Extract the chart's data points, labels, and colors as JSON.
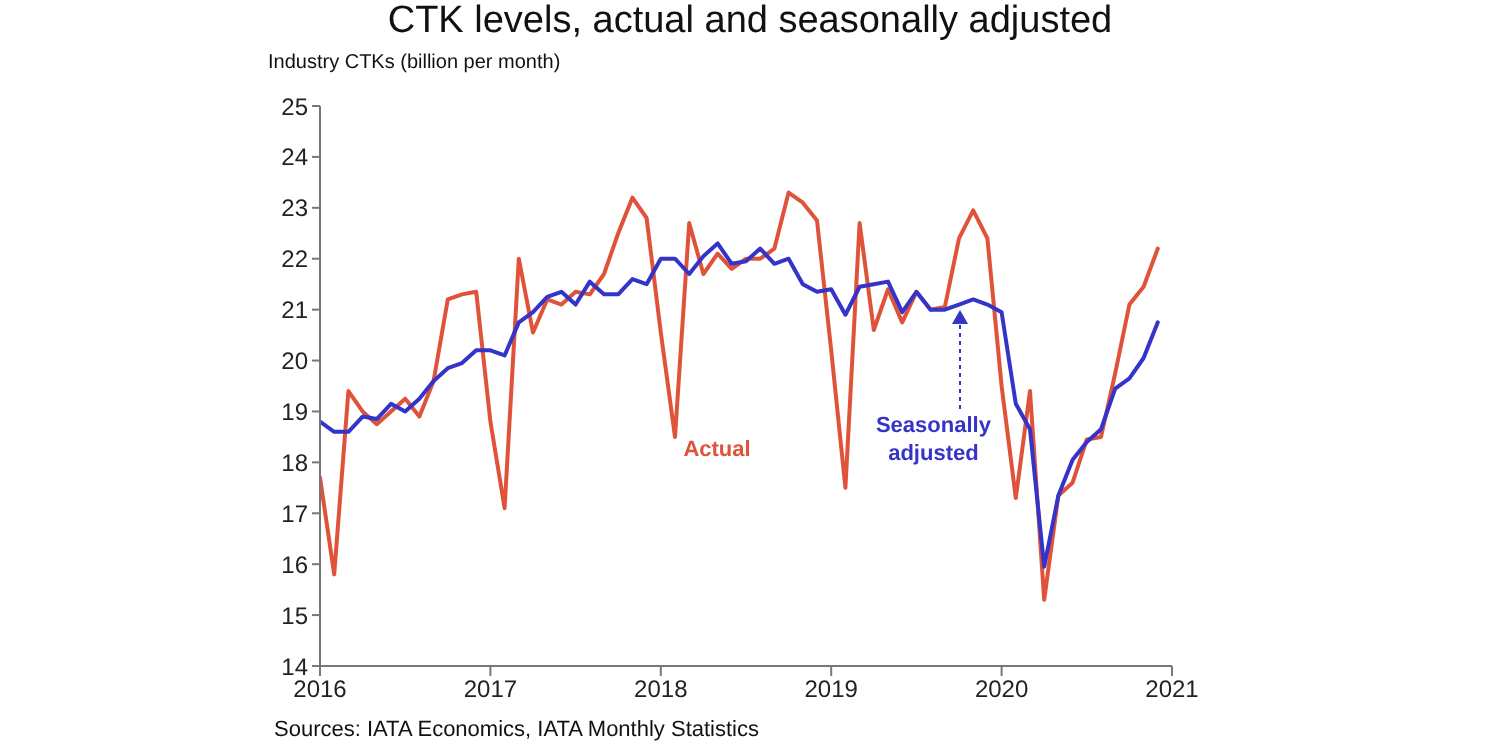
{
  "chart_data": {
    "type": "line",
    "title": "CTK levels, actual and seasonally adjusted",
    "ylabel": "Industry CTKs (billion per month)",
    "x": [
      "2016-01",
      "2016-02",
      "2016-03",
      "2016-04",
      "2016-05",
      "2016-06",
      "2016-07",
      "2016-08",
      "2016-09",
      "2016-10",
      "2016-11",
      "2016-12",
      "2017-01",
      "2017-02",
      "2017-03",
      "2017-04",
      "2017-05",
      "2017-06",
      "2017-07",
      "2017-08",
      "2017-09",
      "2017-10",
      "2017-11",
      "2017-12",
      "2018-01",
      "2018-02",
      "2018-03",
      "2018-04",
      "2018-05",
      "2018-06",
      "2018-07",
      "2018-08",
      "2018-09",
      "2018-10",
      "2018-11",
      "2018-12",
      "2019-01",
      "2019-02",
      "2019-03",
      "2019-04",
      "2019-05",
      "2019-06",
      "2019-07",
      "2019-08",
      "2019-09",
      "2019-10",
      "2019-11",
      "2019-12",
      "2020-01",
      "2020-02",
      "2020-03",
      "2020-04",
      "2020-05",
      "2020-06",
      "2020-07",
      "2020-08",
      "2020-09",
      "2020-10",
      "2020-11",
      "2020-12"
    ],
    "series": [
      {
        "color": "#e0533b",
        "values": [
          17.7,
          15.8,
          19.4,
          19.0,
          18.75,
          19.0,
          19.25,
          18.9,
          19.6,
          21.2,
          21.3,
          21.35,
          18.8,
          17.1,
          22.0,
          20.55,
          21.2,
          21.1,
          21.35,
          21.3,
          21.7,
          22.5,
          23.2,
          22.8,
          20.55,
          18.5,
          22.7,
          21.7,
          22.1,
          21.8,
          22.0,
          22.0,
          22.2,
          23.3,
          23.1,
          22.75,
          20.2,
          17.5,
          22.7,
          20.6,
          21.4,
          20.75,
          21.35,
          21.0,
          21.05,
          22.4,
          22.95,
          22.4,
          19.5,
          17.3,
          19.4,
          15.3,
          17.35,
          17.6,
          18.45,
          18.5,
          19.75,
          21.1,
          21.45,
          22.2
        ]
      },
      {
        "color": "#3434c8",
        "values": [
          18.8,
          18.6,
          18.6,
          18.9,
          18.85,
          19.15,
          19.0,
          19.25,
          19.6,
          19.85,
          19.95,
          20.2,
          20.2,
          20.1,
          20.75,
          20.95,
          21.25,
          21.35,
          21.1,
          21.55,
          21.3,
          21.3,
          21.6,
          21.5,
          22.0,
          22.0,
          21.7,
          22.05,
          22.3,
          21.9,
          21.95,
          22.2,
          21.9,
          22.0,
          21.5,
          21.35,
          21.4,
          20.9,
          21.45,
          21.5,
          21.55,
          20.95,
          21.35,
          21.0,
          21.0,
          21.1,
          21.2,
          21.1,
          20.95,
          19.15,
          18.65,
          15.95,
          17.35,
          18.05,
          18.4,
          18.65,
          19.45,
          19.65,
          20.05,
          20.75
        ]
      }
    ],
    "xlim": [
      "2016",
      "2021"
    ],
    "xticks": [
      "2016",
      "2017",
      "2018",
      "2019",
      "2020",
      "2021"
    ],
    "ylim": [
      14,
      25
    ],
    "yticks": [
      14,
      15,
      16,
      17,
      18,
      19,
      20,
      21,
      22,
      23,
      24,
      25
    ],
    "grid": false,
    "marker": "none",
    "line_style": "solid",
    "annotations": [
      "Actual",
      {
        "text": "Seasonally adjusted",
        "x": "2019-10",
        "y": 21.1
      },
      "Sources: IATA Economics, IATA Monthly Statistics"
    ]
  }
}
